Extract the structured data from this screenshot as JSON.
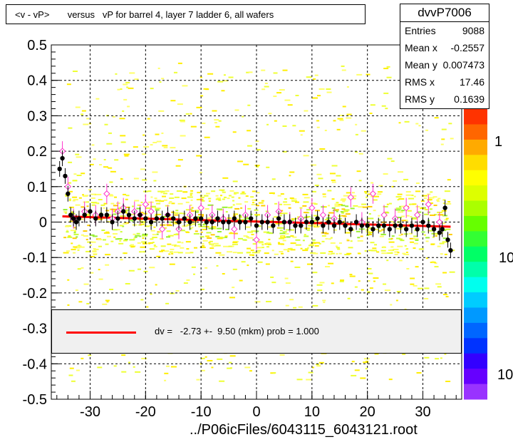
{
  "title": "<v - vP>       versus   vP for barrel 4, layer 7 ladder 6, all wafers",
  "stats": {
    "name": "dvvP7006",
    "rows": [
      {
        "label": "Entries",
        "value": "9088"
      },
      {
        "label": "Mean x",
        "value": "-0.2557"
      },
      {
        "label": "Mean y",
        "value": "0.007473"
      },
      {
        "label": "RMS x",
        "value": "17.46"
      },
      {
        "label": "RMS y",
        "value": "0.1639"
      }
    ]
  },
  "legend": {
    "text": "dv =   -2.73 +-  9.50 (mkm) prob = 1.000",
    "line_color": "#ff0000"
  },
  "footer": "../P06icFiles/6043115_6043121.root",
  "colorbar": {
    "labels": [
      "1",
      "10",
      "10"
    ]
  },
  "chart_data": {
    "type": "scatter",
    "xlim": [
      -37,
      37
    ],
    "ylim": [
      -0.5,
      0.5
    ],
    "xticks": [
      -30,
      -20,
      -10,
      0,
      10,
      20,
      30
    ],
    "yticks": [
      0.5,
      0.4,
      0.3,
      0.2,
      0.1,
      0,
      -0.1,
      -0.2,
      -0.3,
      -0.4,
      -0.5
    ],
    "ytick_labels": [
      "0.5",
      "0.4",
      "0.3",
      "0.2",
      "0.1",
      "0",
      "-0.1",
      "-0.2",
      "-0.3",
      "-0.4",
      "-0.5"
    ],
    "grid": true,
    "fit_line": {
      "x": [
        -35,
        35
      ],
      "y": [
        0.016,
        -0.013
      ],
      "color": "#ff0000"
    },
    "profile_black": {
      "x": [
        -35.5,
        -35,
        -34.5,
        -34,
        -33.5,
        -33,
        -32.5,
        -32,
        -31,
        -30,
        -29,
        -28,
        -27,
        -26,
        -25,
        -24,
        -23,
        -22,
        -21,
        -20,
        -19,
        -18,
        -17,
        -16,
        -15,
        -14,
        -13,
        -12,
        -11,
        -10,
        -9,
        -8,
        -7,
        -6,
        -5,
        -4,
        -3,
        -2,
        -1,
        0,
        1,
        2,
        3,
        4,
        5,
        6,
        7,
        8,
        9,
        10,
        11,
        12,
        13,
        14,
        15,
        16,
        17,
        18,
        19,
        20,
        21,
        22,
        23,
        24,
        25,
        26,
        27,
        28,
        29,
        30,
        31,
        32,
        33,
        33.5,
        34,
        34.5,
        35
      ],
      "y": [
        0.15,
        0.18,
        0.13,
        0.08,
        0.02,
        0.01,
        0.0,
        0.01,
        0.02,
        0.03,
        0.01,
        0.02,
        0.02,
        0.0,
        0.01,
        0.03,
        0.02,
        0.01,
        0.02,
        0.01,
        0.0,
        0.01,
        0.01,
        0.02,
        0.01,
        0.0,
        0.01,
        0.0,
        0.01,
        0.01,
        0.0,
        0.0,
        0.01,
        0.0,
        0.0,
        0.01,
        0.0,
        0.0,
        0.01,
        -0.01,
        0.0,
        0.0,
        -0.01,
        0.01,
        0.0,
        0.0,
        -0.01,
        -0.01,
        0.0,
        0.0,
        0.01,
        -0.01,
        0.0,
        -0.01,
        0.0,
        -0.01,
        -0.02,
        0.0,
        -0.01,
        -0.01,
        -0.02,
        -0.01,
        -0.01,
        -0.02,
        -0.01,
        -0.01,
        -0.02,
        -0.01,
        -0.02,
        0.0,
        -0.01,
        -0.02,
        -0.03,
        -0.02,
        0.04,
        -0.05,
        -0.08
      ]
    },
    "profile_pink": {
      "x": [
        -35,
        -34,
        -33,
        -31,
        -29,
        -27,
        -26,
        -25,
        -24,
        -22,
        -21,
        -20,
        -19,
        -17,
        -16,
        -14,
        -12,
        -10,
        -8,
        -6,
        -4,
        -2,
        0,
        2,
        4,
        6,
        8,
        10,
        12,
        14,
        17,
        19,
        21,
        23,
        25,
        27,
        29,
        31,
        33
      ],
      "y": [
        0.2,
        0.1,
        0.01,
        0.03,
        0.02,
        0.08,
        0.01,
        0.03,
        0.04,
        0.03,
        0.02,
        0.05,
        0.03,
        -0.02,
        0.02,
        -0.02,
        0.02,
        0.04,
        0.02,
        0.01,
        -0.02,
        0.02,
        -0.05,
        0.02,
        0.03,
        0.0,
        0.01,
        0.04,
        0.02,
        0.01,
        0.07,
        0.0,
        0.08,
        0.02,
        0.01,
        0.04,
        0.02,
        0.05,
        0.0
      ]
    }
  }
}
